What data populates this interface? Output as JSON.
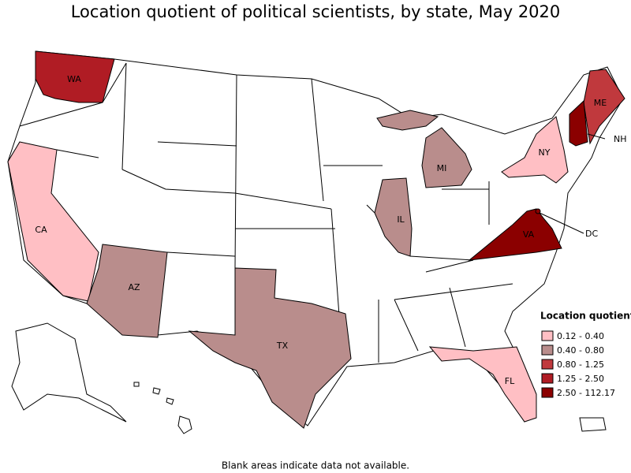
{
  "title": "Location quotient of political scientists, by state, May 2020",
  "footnote": "Blank areas indicate data not available.",
  "legend": {
    "title": "Location quotient",
    "classes": [
      {
        "label": "0.12 - 0.40",
        "color": "#ffbfc4",
        "states": [
          "CA",
          "NY",
          "FL"
        ]
      },
      {
        "label": "0.40 - 0.80",
        "color": "#b98d8c",
        "states": [
          "AZ",
          "TX",
          "IL",
          "MI"
        ]
      },
      {
        "label": "0.80 - 1.25",
        "color": "#c0393d",
        "states": [
          "ME"
        ]
      },
      {
        "label": "1.25 - 2.50",
        "color": "#b01c24",
        "states": [
          "WA"
        ]
      },
      {
        "label": "2.50 - 112.17",
        "color": "#8b0000",
        "states": [
          "VA",
          "NH",
          "DC"
        ]
      }
    ]
  }
}
